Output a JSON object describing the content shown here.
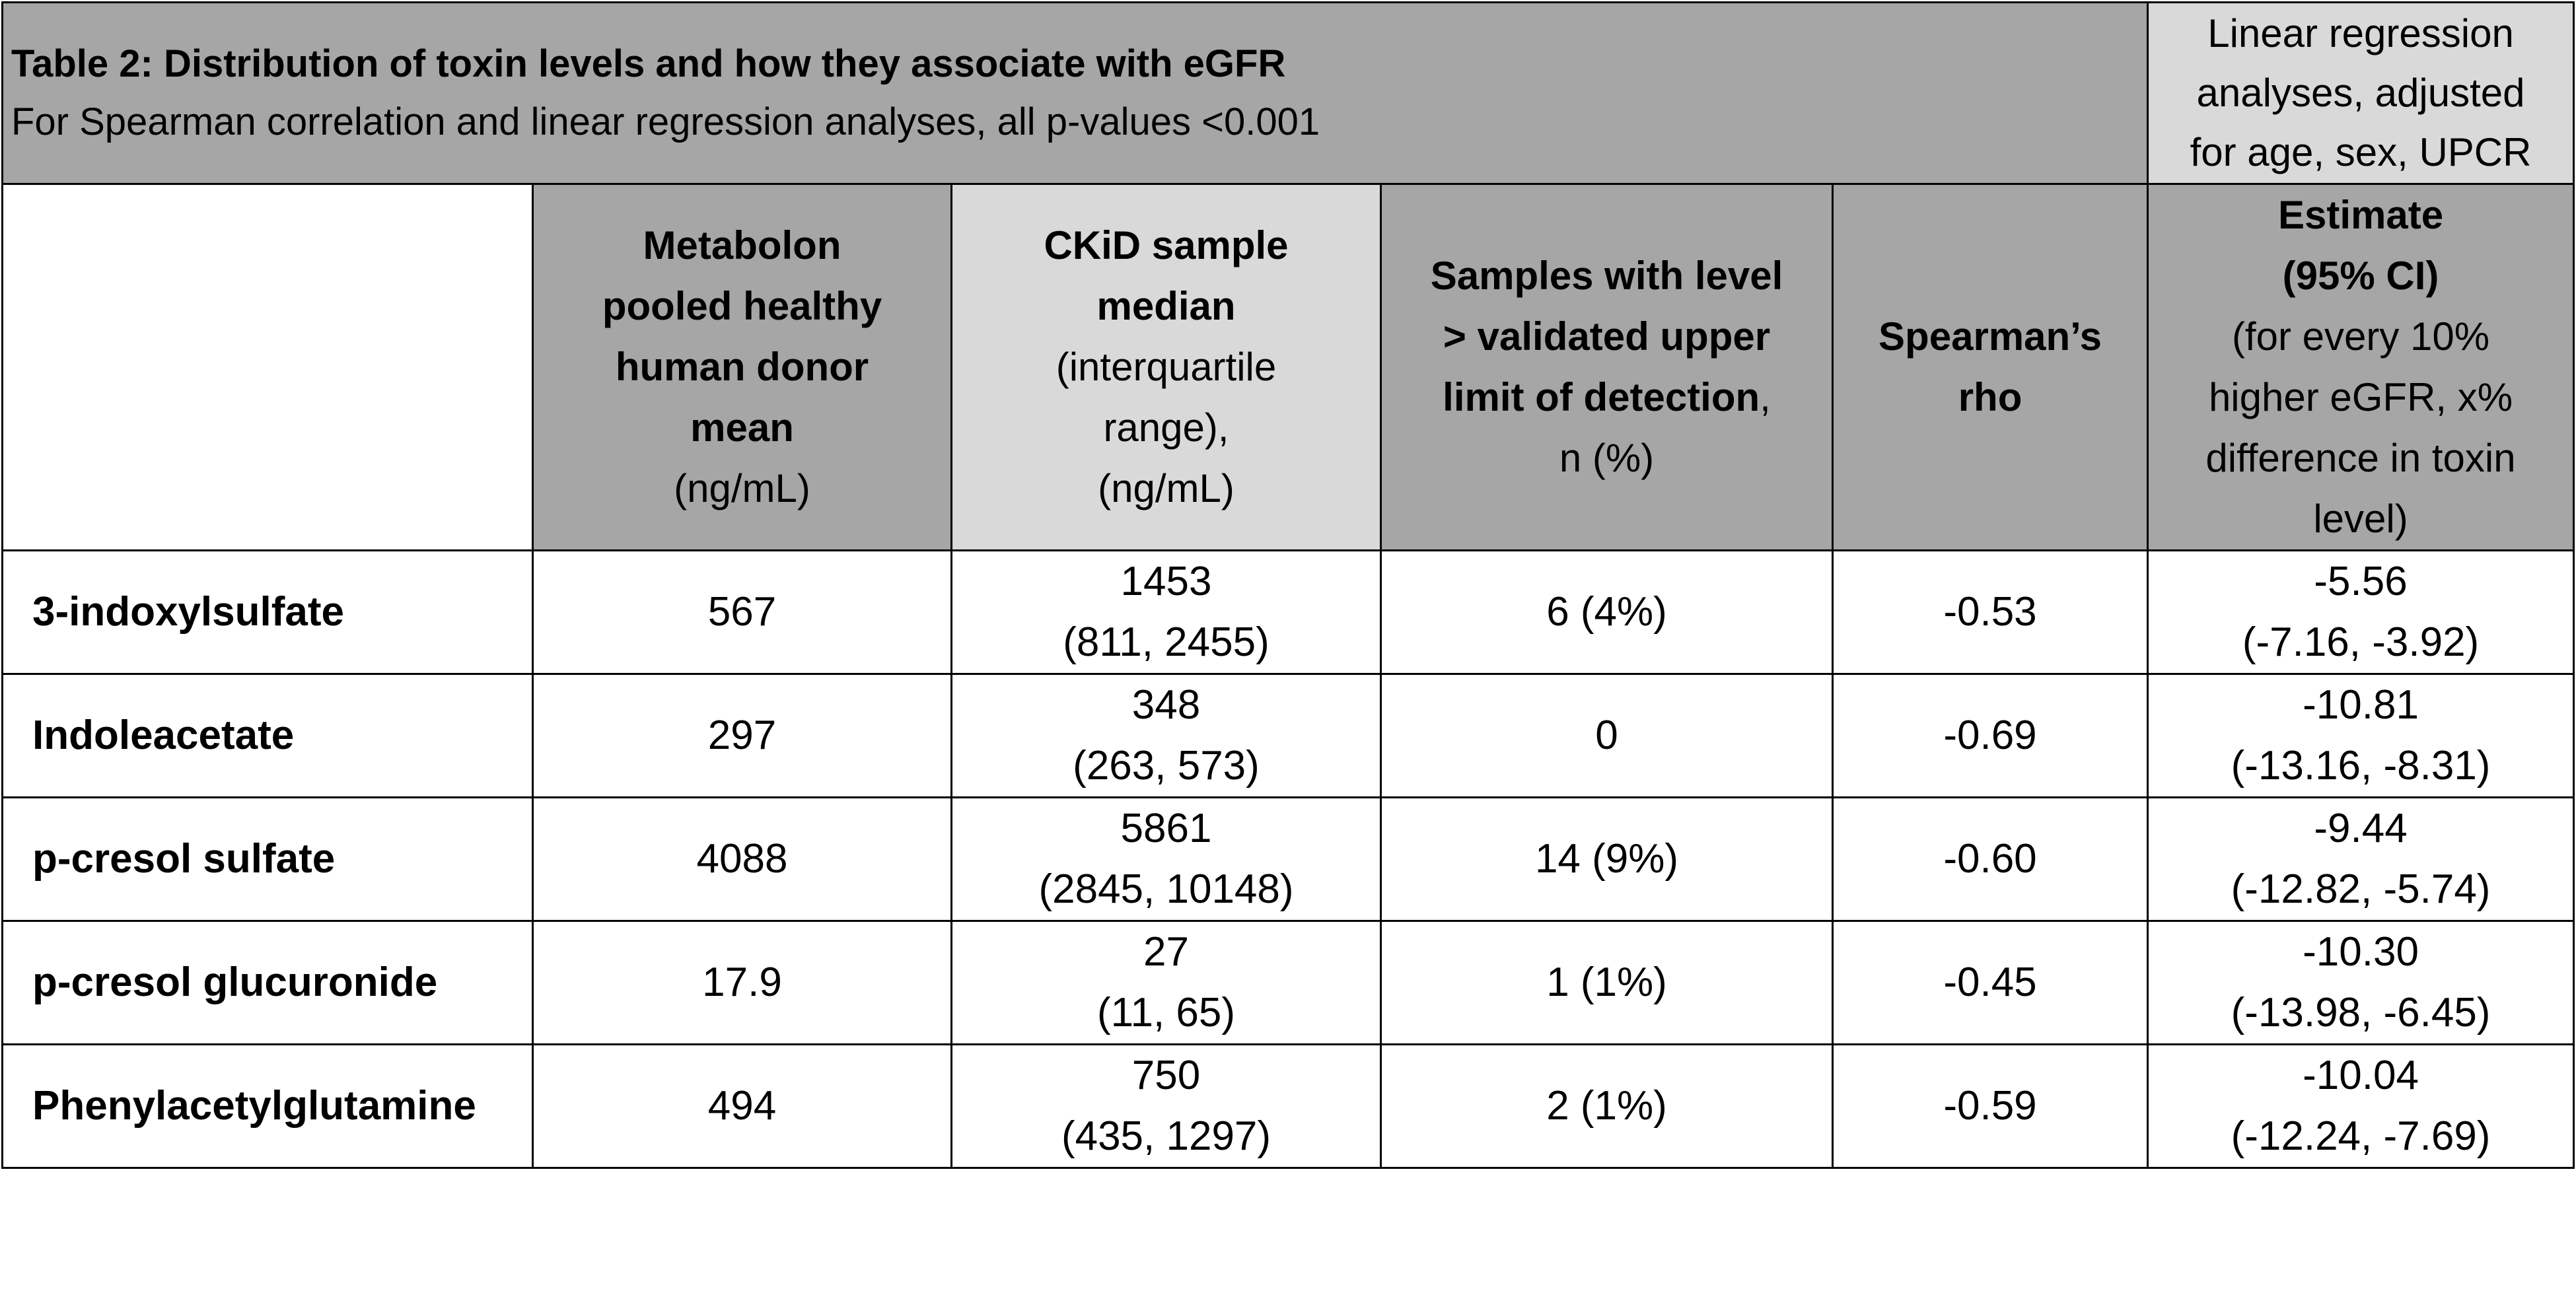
{
  "title": "Table 2: Distribution of toxin levels and how they associate with eGFR",
  "subtitle": "For Spearman correlation and linear regression analyses, all p-values <0.001",
  "regression_header": [
    "Linear regression",
    "analyses, adjusted",
    "for age, sex, UPCR"
  ],
  "columns": {
    "metabolon": {
      "bold": [
        "Metabolon",
        "pooled healthy",
        "human donor",
        "mean"
      ],
      "normal": [
        "(ng/mL)"
      ]
    },
    "ckid": {
      "bold": [
        "CKiD sample",
        "median"
      ],
      "normal": [
        "(interquartile",
        "range),",
        "(ng/mL)"
      ]
    },
    "samples": {
      "bold_lines": [
        "Samples with level",
        "> validated upper"
      ],
      "last_bold": "limit of detection",
      "last_normal": ",",
      "normal": [
        "n (%)"
      ]
    },
    "spearman": {
      "bold": [
        "Spearman’s",
        "rho"
      ]
    },
    "estimate": {
      "bold": [
        "Estimate",
        "(95% CI)"
      ],
      "normal": [
        "(for every 10%",
        "higher eGFR, x%",
        "difference in toxin",
        "level)"
      ]
    }
  },
  "rows": [
    {
      "name": "3-indoxylsulfate",
      "metabolon": "567",
      "ckid_median": "1453",
      "ckid_iqr": "(811, 2455)",
      "samples": "6 (4%)",
      "rho": "-0.53",
      "estimate": "-5.56",
      "ci": "(-7.16, -3.92)"
    },
    {
      "name": "Indoleacetate",
      "metabolon": "297",
      "ckid_median": "348",
      "ckid_iqr": "(263, 573)",
      "samples": "0",
      "rho": "-0.69",
      "estimate": "-10.81",
      "ci": "(-13.16, -8.31)"
    },
    {
      "name": "p-cresol sulfate",
      "metabolon": "4088",
      "ckid_median": "5861",
      "ckid_iqr": "(2845, 10148)",
      "samples": "14 (9%)",
      "rho": "-0.60",
      "estimate": "-9.44",
      "ci": "(-12.82, -5.74)"
    },
    {
      "name": "p-cresol glucuronide",
      "metabolon": "17.9",
      "ckid_median": "27",
      "ckid_iqr": "(11, 65)",
      "samples": "1 (1%)",
      "rho": "-0.45",
      "estimate": "-10.30",
      "ci": "(-13.98, -6.45)"
    },
    {
      "name": "Phenylacetylglutamine",
      "metabolon": "494",
      "ckid_median": "750",
      "ckid_iqr": "(435, 1297)",
      "samples": "2 (1%)",
      "rho": "-0.59",
      "estimate": "-10.04",
      "ci": "(-12.24, -7.69)"
    }
  ],
  "colors": {
    "header_dark": "#a6a6a6",
    "header_light": "#d9d9d9",
    "border": "#000000"
  }
}
